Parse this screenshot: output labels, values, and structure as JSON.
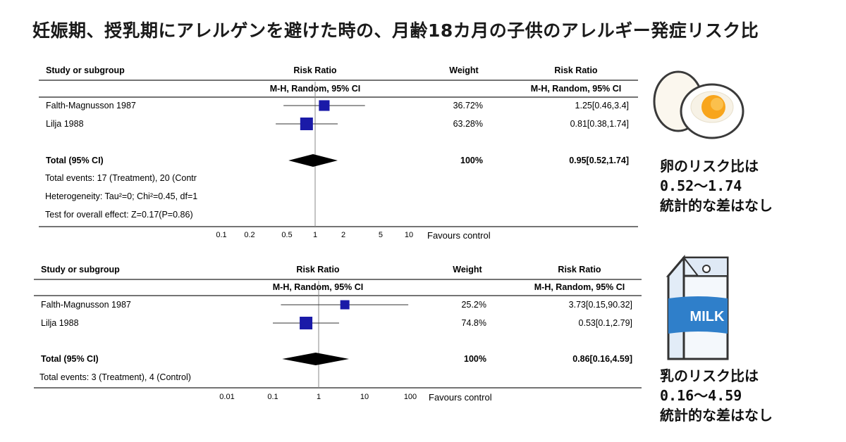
{
  "title": "妊娠期、授乳期にアレルゲンを避けた時の、月齢18カ月の子供のアレルギー発症リスク比",
  "chart_data": [
    {
      "type": "forest",
      "headers": {
        "study": "Study or subgroup",
        "rr": "Risk Ratio",
        "rr_sub": "M-H, Random, 95% CI",
        "weight": "Weight",
        "rr_right": "Risk Ratio",
        "rr_right_sub": "M-H, Random, 95% CI"
      },
      "studies": [
        {
          "name": "Falth-Magnusson 1987",
          "rr": 1.25,
          "lo": 0.46,
          "hi": 3.4,
          "weight": 36.72,
          "weight_label": "36.72%",
          "ci_label": "1.25[0.46,3.4]"
        },
        {
          "name": "Lilja 1988",
          "rr": 0.81,
          "lo": 0.38,
          "hi": 1.74,
          "weight": 63.28,
          "weight_label": "63.28%",
          "ci_label": "0.81[0.38,1.74]"
        }
      ],
      "total": {
        "name": "Total (95% CI)",
        "rr": 0.95,
        "lo": 0.52,
        "hi": 1.74,
        "weight_label": "100%",
        "ci_label": "0.95[0.52,1.74]"
      },
      "notes": [
        "Total events: 17 (Treatment), 20 (Contr",
        "Heterogeneity: Tau²=0; Chi²=0.45, df=1",
        "Test for overall effect: Z=0.17(P=0.86)"
      ],
      "ticks": [
        0.1,
        0.2,
        0.5,
        1,
        2,
        5,
        10
      ],
      "tick_labels": [
        "0.1",
        "0.2",
        "0.5",
        "1",
        "2",
        "5",
        "10"
      ],
      "xlim": [
        0.1,
        10
      ],
      "scale": "log",
      "favours_right": "Favours control",
      "marker_color": "#1a1aa8"
    },
    {
      "type": "forest",
      "headers": {
        "study": "Study or subgroup",
        "rr": "Risk Ratio",
        "rr_sub": "M-H, Random, 95% CI",
        "weight": "Weight",
        "rr_right": "Risk Ratio",
        "rr_right_sub": "M-H, Random, 95% CI"
      },
      "studies": [
        {
          "name": "Falth-Magnusson 1987",
          "rr": 3.73,
          "lo": 0.15,
          "hi": 90.32,
          "weight": 25.2,
          "weight_label": "25.2%",
          "ci_label": "3.73[0.15,90.32]"
        },
        {
          "name": "Lilja 1988",
          "rr": 0.53,
          "lo": 0.1,
          "hi": 2.79,
          "weight": 74.8,
          "weight_label": "74.8%",
          "ci_label": "0.53[0.1,2.79]"
        }
      ],
      "total": {
        "name": "Total (95% CI)",
        "rr": 0.86,
        "lo": 0.16,
        "hi": 4.59,
        "weight_label": "100%",
        "ci_label": "0.86[0.16,4.59]"
      },
      "notes": [
        "Total events: 3 (Treatment), 4 (Control)"
      ],
      "ticks": [
        0.01,
        0.1,
        1,
        10,
        100
      ],
      "tick_labels": [
        "0.01",
        "0.1",
        "1",
        "10",
        "100"
      ],
      "xlim": [
        0.01,
        100
      ],
      "scale": "log",
      "favours_right": "Favours control",
      "marker_color": "#1a1aa8"
    }
  ],
  "side": {
    "egg_lines": [
      "卵のリスク比は",
      "0.52～1.74",
      "統計的な差はなし"
    ],
    "milk_lines": [
      "乳のリスク比は",
      "0.16～4.59",
      "統計的な差はなし"
    ],
    "milk_label": "MILK"
  }
}
